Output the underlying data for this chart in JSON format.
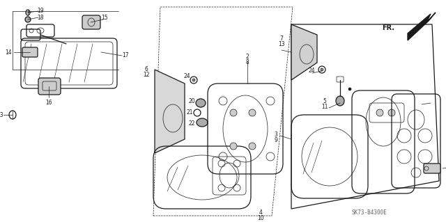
{
  "bg_color": "#ffffff",
  "line_color": "#1a1a1a",
  "fig_width": 6.4,
  "fig_height": 3.19,
  "doc_number": "SK73-B4300E"
}
